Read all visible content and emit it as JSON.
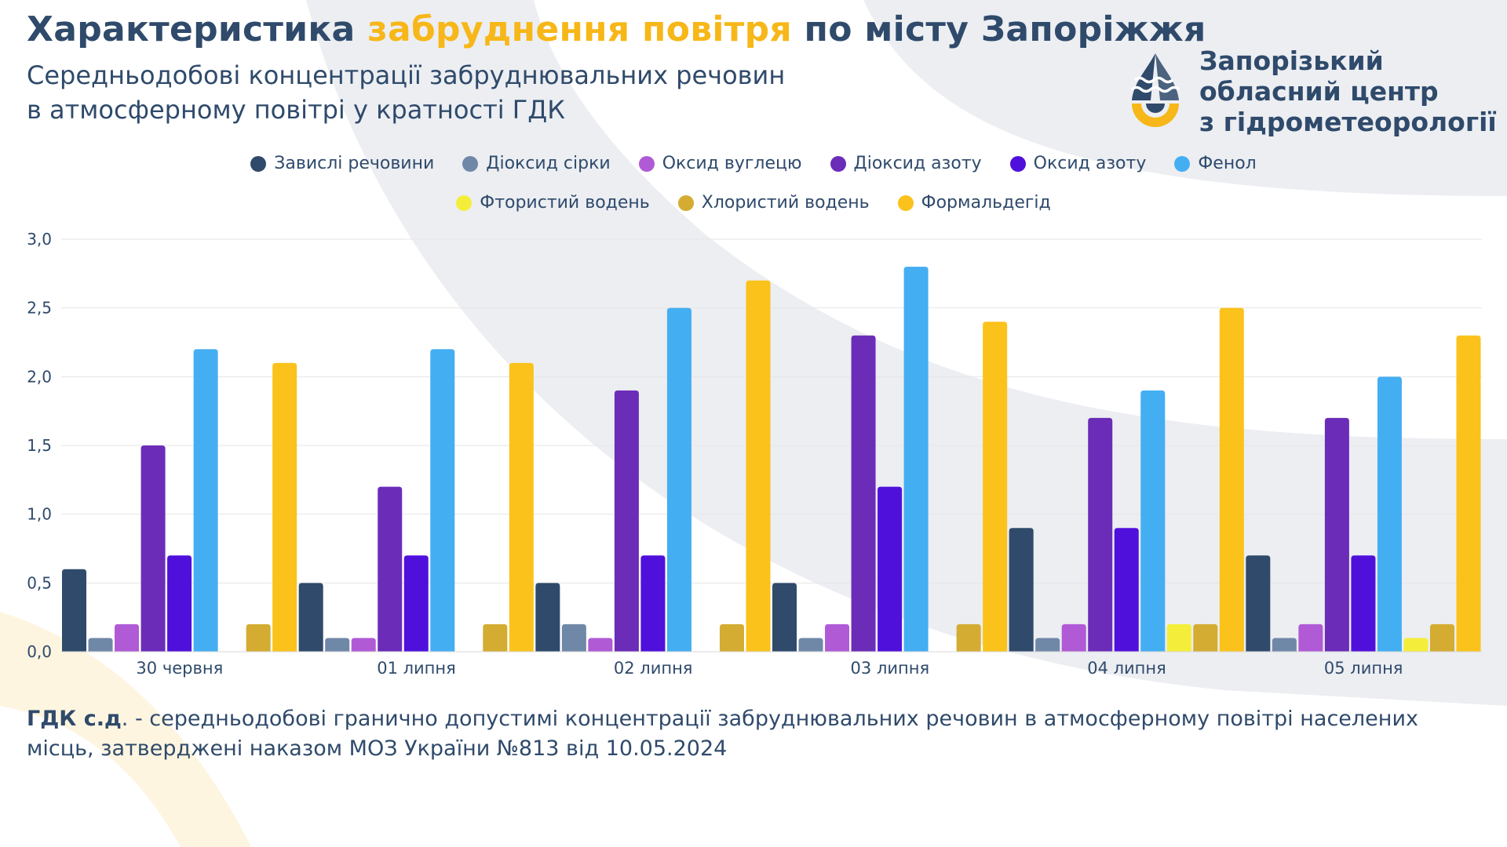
{
  "header": {
    "title_part1": "Характеристика ",
    "title_highlight": "забруднення повітря",
    "title_part2": " по місту Запоріжжя",
    "subtitle_line1": "Середньодобові концентрації забруднювальних речовин",
    "subtitle_line2": "в атмосферному повітрі у кратності ГДК"
  },
  "logo": {
    "line1": "Запорізький",
    "line2": "обласний центр",
    "line3": "з гідрометеорології"
  },
  "footnote": {
    "term": "ГДК с.д",
    "text": ". - середньодобові гранично допустимі концентрації забруднювальних речовин в атмосферному повітрі населених місць, затверджені наказом МОЗ України №813 від 10.05.2024"
  },
  "colors": {
    "title": "#2f4a6b",
    "accent": "#f7b718",
    "grid": "#e6e6e6"
  },
  "chart_data": {
    "type": "bar",
    "categories": [
      "30 червня",
      "01 липня",
      "02 липня",
      "03 липня",
      "04 липня",
      "05 липня"
    ],
    "ylim": [
      0,
      3
    ],
    "yticks": [
      "0,0",
      "0,5",
      "1,0",
      "1,5",
      "2,0",
      "2,5",
      "3,0"
    ],
    "legend_position": "top-center",
    "grid": true,
    "series": [
      {
        "name": "Завислі речовини",
        "color": "#2f4a6b",
        "values": [
          0.6,
          0.5,
          0.5,
          0.5,
          0.9,
          0.7
        ]
      },
      {
        "name": "Діоксид сірки",
        "color": "#7088a8",
        "values": [
          0.1,
          0.1,
          0.2,
          0.1,
          0.1,
          0.1
        ]
      },
      {
        "name": "Оксид вуглецю",
        "color": "#b05ad6",
        "values": [
          0.2,
          0.1,
          0.1,
          0.2,
          0.2,
          0.2
        ]
      },
      {
        "name": "Діоксид азоту",
        "color": "#6b2db8",
        "values": [
          1.5,
          1.2,
          1.9,
          2.3,
          1.7,
          1.7
        ]
      },
      {
        "name": "Оксид азоту",
        "color": "#5010dc",
        "values": [
          0.7,
          0.7,
          0.7,
          1.2,
          0.9,
          0.7
        ]
      },
      {
        "name": "Фенол",
        "color": "#44aef2",
        "values": [
          2.2,
          2.2,
          2.5,
          2.8,
          1.9,
          2.0
        ]
      },
      {
        "name": "Фтористий водень",
        "color": "#f4ee3a",
        "values": [
          0,
          0,
          0,
          0,
          0.2,
          0.1
        ]
      },
      {
        "name": "Хлористий водень",
        "color": "#d4ac32",
        "values": [
          0.2,
          0.2,
          0.2,
          0.2,
          0.2,
          0.2
        ]
      },
      {
        "name": "Формальдегід",
        "color": "#fbc21b",
        "values": [
          2.1,
          2.1,
          2.7,
          2.4,
          2.5,
          2.3
        ]
      }
    ]
  }
}
